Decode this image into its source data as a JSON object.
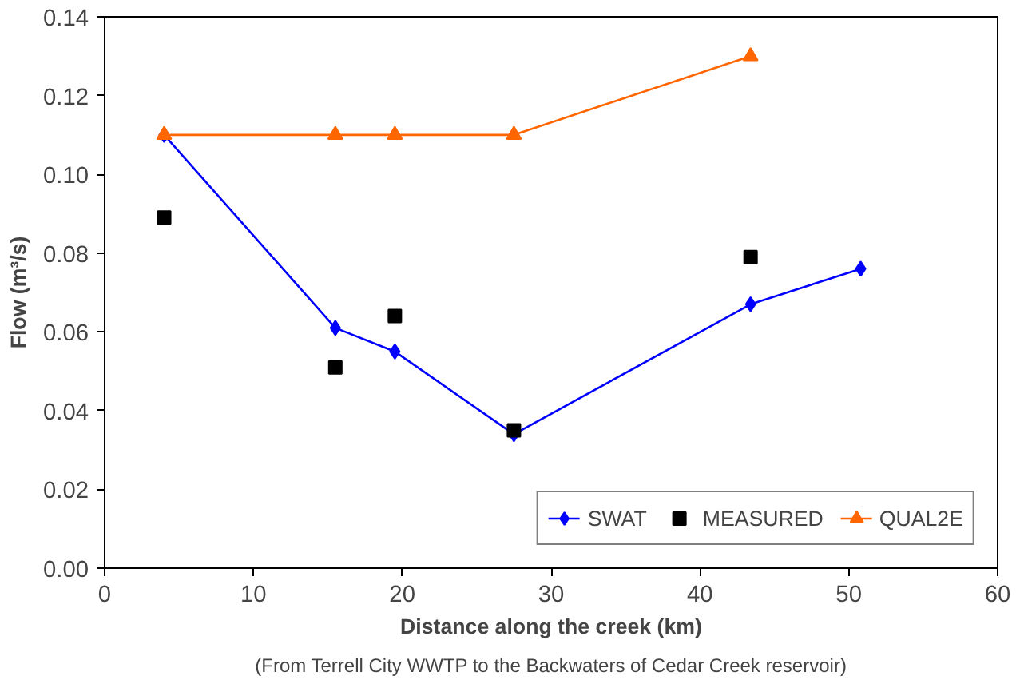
{
  "chart_data": {
    "type": "line",
    "xlabel": "Distance along the creek (km)",
    "ylabel": "Flow (m³/s)",
    "annotations": [
      "(From Terrell City WWTP to the Backwaters of Cedar Creek reservoir)"
    ],
    "xlim": [
      0,
      60
    ],
    "xticks": [
      0,
      10,
      20,
      30,
      40,
      50,
      60
    ],
    "ylim": [
      0,
      0.14
    ],
    "yticks": [
      {
        "value": 0,
        "label": "0.00"
      },
      {
        "value": 0.02,
        "label": "0.02"
      },
      {
        "value": 0.04,
        "label": "0.04"
      },
      {
        "value": 0.06,
        "label": "0.06"
      },
      {
        "value": 0.08,
        "label": "0.08"
      },
      {
        "value": 0.1,
        "label": "0.10"
      },
      {
        "value": 0.12,
        "label": "0.12"
      },
      {
        "value": 0.14,
        "label": "0.14"
      }
    ],
    "grid": false,
    "legend": "bottom right",
    "series": [
      {
        "name": "SWAT",
        "marker": "diamond",
        "color": "#0000ff",
        "x": [
          4.0,
          15.5,
          19.5,
          27.5,
          43.4,
          50.8
        ],
        "values": [
          0.11,
          0.061,
          0.055,
          0.034,
          0.067,
          0.076
        ]
      },
      {
        "name": "MEASURED",
        "type": "scatter",
        "marker": "square",
        "color": "#000000",
        "x": [
          4.0,
          15.5,
          19.5,
          27.5,
          43.4
        ],
        "values": [
          0.089,
          0.051,
          0.064,
          0.035,
          0.079
        ]
      },
      {
        "name": "QUAL2E",
        "marker": "triangle",
        "color": "#ff6600",
        "x": [
          4.0,
          15.5,
          19.5,
          27.5,
          43.4
        ],
        "values": [
          0.11,
          0.11,
          0.11,
          0.11,
          0.13
        ]
      }
    ]
  }
}
